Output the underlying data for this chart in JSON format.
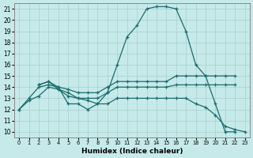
{
  "xlabel": "Humidex (Indice chaleur)",
  "xlim": [
    -0.5,
    23.5
  ],
  "ylim": [
    9.5,
    21.5
  ],
  "xticks": [
    0,
    1,
    2,
    3,
    4,
    5,
    6,
    7,
    8,
    9,
    10,
    11,
    12,
    13,
    14,
    15,
    16,
    17,
    18,
    19,
    20,
    21,
    22,
    23
  ],
  "yticks": [
    10,
    11,
    12,
    13,
    14,
    15,
    16,
    17,
    18,
    19,
    20,
    21
  ],
  "background_color": "#c6eaea",
  "grid_color": "#aacccc",
  "line_color": "#1a6b6b",
  "lines": [
    {
      "x": [
        0,
        1,
        2,
        3,
        4,
        5,
        6,
        7,
        8,
        9,
        10,
        11,
        12,
        13,
        14,
        15,
        16,
        17,
        18,
        19,
        20,
        21,
        22,
        23
      ],
      "y": [
        12,
        13,
        14,
        14.2,
        14,
        12.5,
        12.5,
        12,
        12.5,
        13.5,
        16,
        18.5,
        19.5,
        21,
        21.2,
        21.2,
        21,
        19,
        16,
        15,
        12.5,
        10,
        10,
        null
      ]
    },
    {
      "x": [
        2,
        3,
        4,
        5,
        6,
        7,
        8,
        9,
        10,
        11,
        12,
        13,
        14,
        15,
        16,
        17,
        18,
        19,
        20,
        21,
        22,
        23
      ],
      "y": [
        14.2,
        14.5,
        14,
        13.8,
        13.5,
        13.5,
        13.5,
        14,
        14.5,
        14.5,
        14.5,
        14.5,
        14.5,
        14.5,
        15,
        15,
        15,
        15,
        15,
        15,
        15,
        null
      ]
    },
    {
      "x": [
        2,
        3,
        4,
        5,
        6,
        7,
        8,
        9,
        10,
        11,
        12,
        13,
        14,
        15,
        16,
        17,
        18,
        19,
        20,
        21,
        22,
        23
      ],
      "y": [
        14.2,
        14.5,
        13.8,
        13.2,
        13,
        13,
        13,
        13.5,
        14,
        14,
        14,
        14,
        14,
        14,
        14.2,
        14.2,
        14.2,
        14.2,
        14.2,
        14.2,
        14.2,
        null
      ]
    },
    {
      "x": [
        0,
        1,
        2,
        3,
        4,
        5,
        6,
        7,
        8,
        9,
        10,
        11,
        12,
        13,
        14,
        15,
        16,
        17,
        18,
        19,
        20,
        21,
        22,
        23
      ],
      "y": [
        12,
        12.8,
        13.2,
        14,
        13.8,
        13.5,
        13,
        12.8,
        12.5,
        12.5,
        13,
        13,
        13,
        13,
        13,
        13,
        13,
        13,
        12.5,
        12.2,
        11.5,
        10.5,
        10.2,
        10
      ]
    }
  ]
}
